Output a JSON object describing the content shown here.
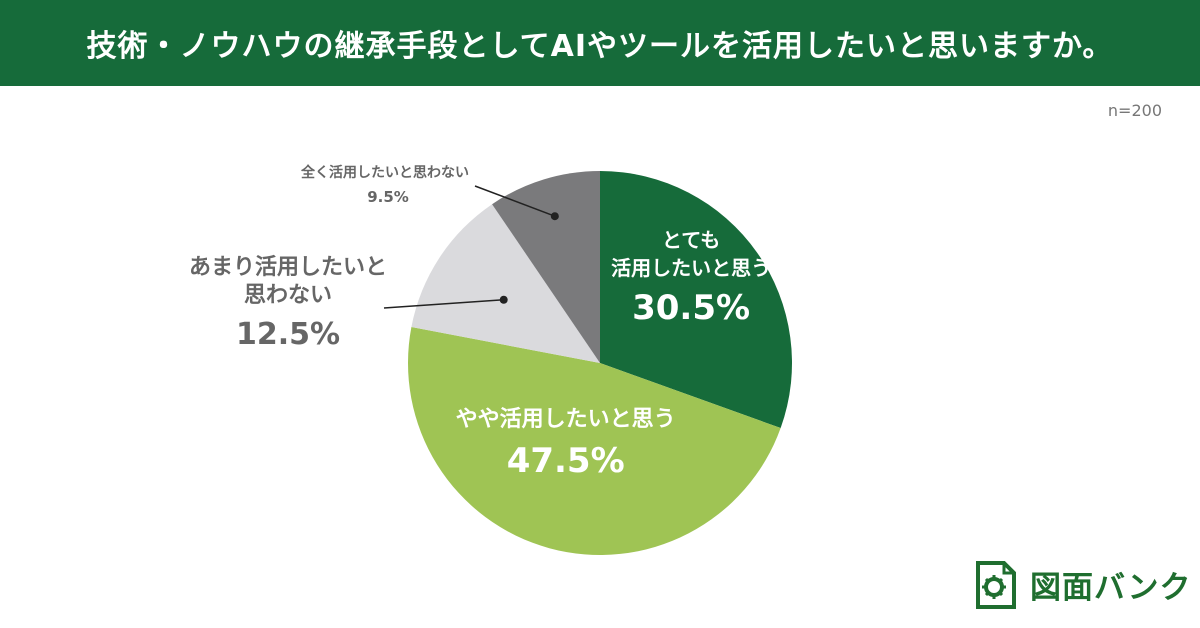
{
  "title": "技術・ノウハウの継承手段としてAIやツールを活用したいと思いますか。",
  "sample_size": "n=200",
  "brand": "図面バンク",
  "colors": {
    "header_bg": "#166b3a",
    "brand": "#1f6e2f"
  },
  "chart_data": {
    "type": "pie",
    "slices": [
      {
        "label_lines": [
          "とても",
          "活用したいと思う"
        ],
        "value": 30.5,
        "value_label": "30.5%",
        "color": "#166b3a"
      },
      {
        "label_lines": [
          "やや活用したいと思う"
        ],
        "value": 47.5,
        "value_label": "47.5%",
        "color": "#9fc454"
      },
      {
        "label_lines": [
          "あまり活用したいと",
          "思わない"
        ],
        "value": 12.5,
        "value_label": "12.5%",
        "color": "#dadadd"
      },
      {
        "label_lines": [
          "全く活用したいと思わない"
        ],
        "value": 9.5,
        "value_label": "9.5%",
        "color": "#7a7a7c"
      }
    ]
  }
}
